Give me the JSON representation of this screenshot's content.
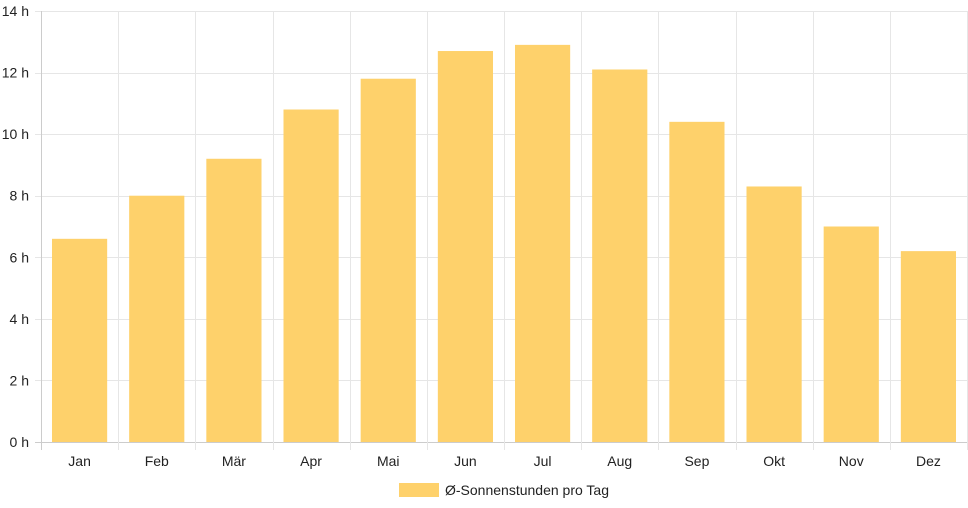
{
  "chart_data": {
    "type": "bar",
    "title": "",
    "xlabel": "",
    "ylabel": "",
    "categories": [
      "Jan",
      "Feb",
      "Mär",
      "Apr",
      "Mai",
      "Jun",
      "Jul",
      "Aug",
      "Sep",
      "Okt",
      "Nov",
      "Dez"
    ],
    "series": [
      {
        "name": "Ø-Sonnenstunden pro Tag",
        "values": [
          6.6,
          8.0,
          9.2,
          10.8,
          11.8,
          12.7,
          12.9,
          12.1,
          10.4,
          8.3,
          7.0,
          6.2
        ],
        "color": "#fed16b"
      }
    ],
    "ylim": [
      0,
      14
    ],
    "yticks": [
      0,
      2,
      4,
      6,
      8,
      10,
      12,
      14
    ],
    "ytick_suffix": " h",
    "grid": true,
    "legend_position": "bottom-center"
  },
  "colors": {
    "grid": "#e6e6e6",
    "axis": "#cccccc",
    "text": "#222222"
  }
}
